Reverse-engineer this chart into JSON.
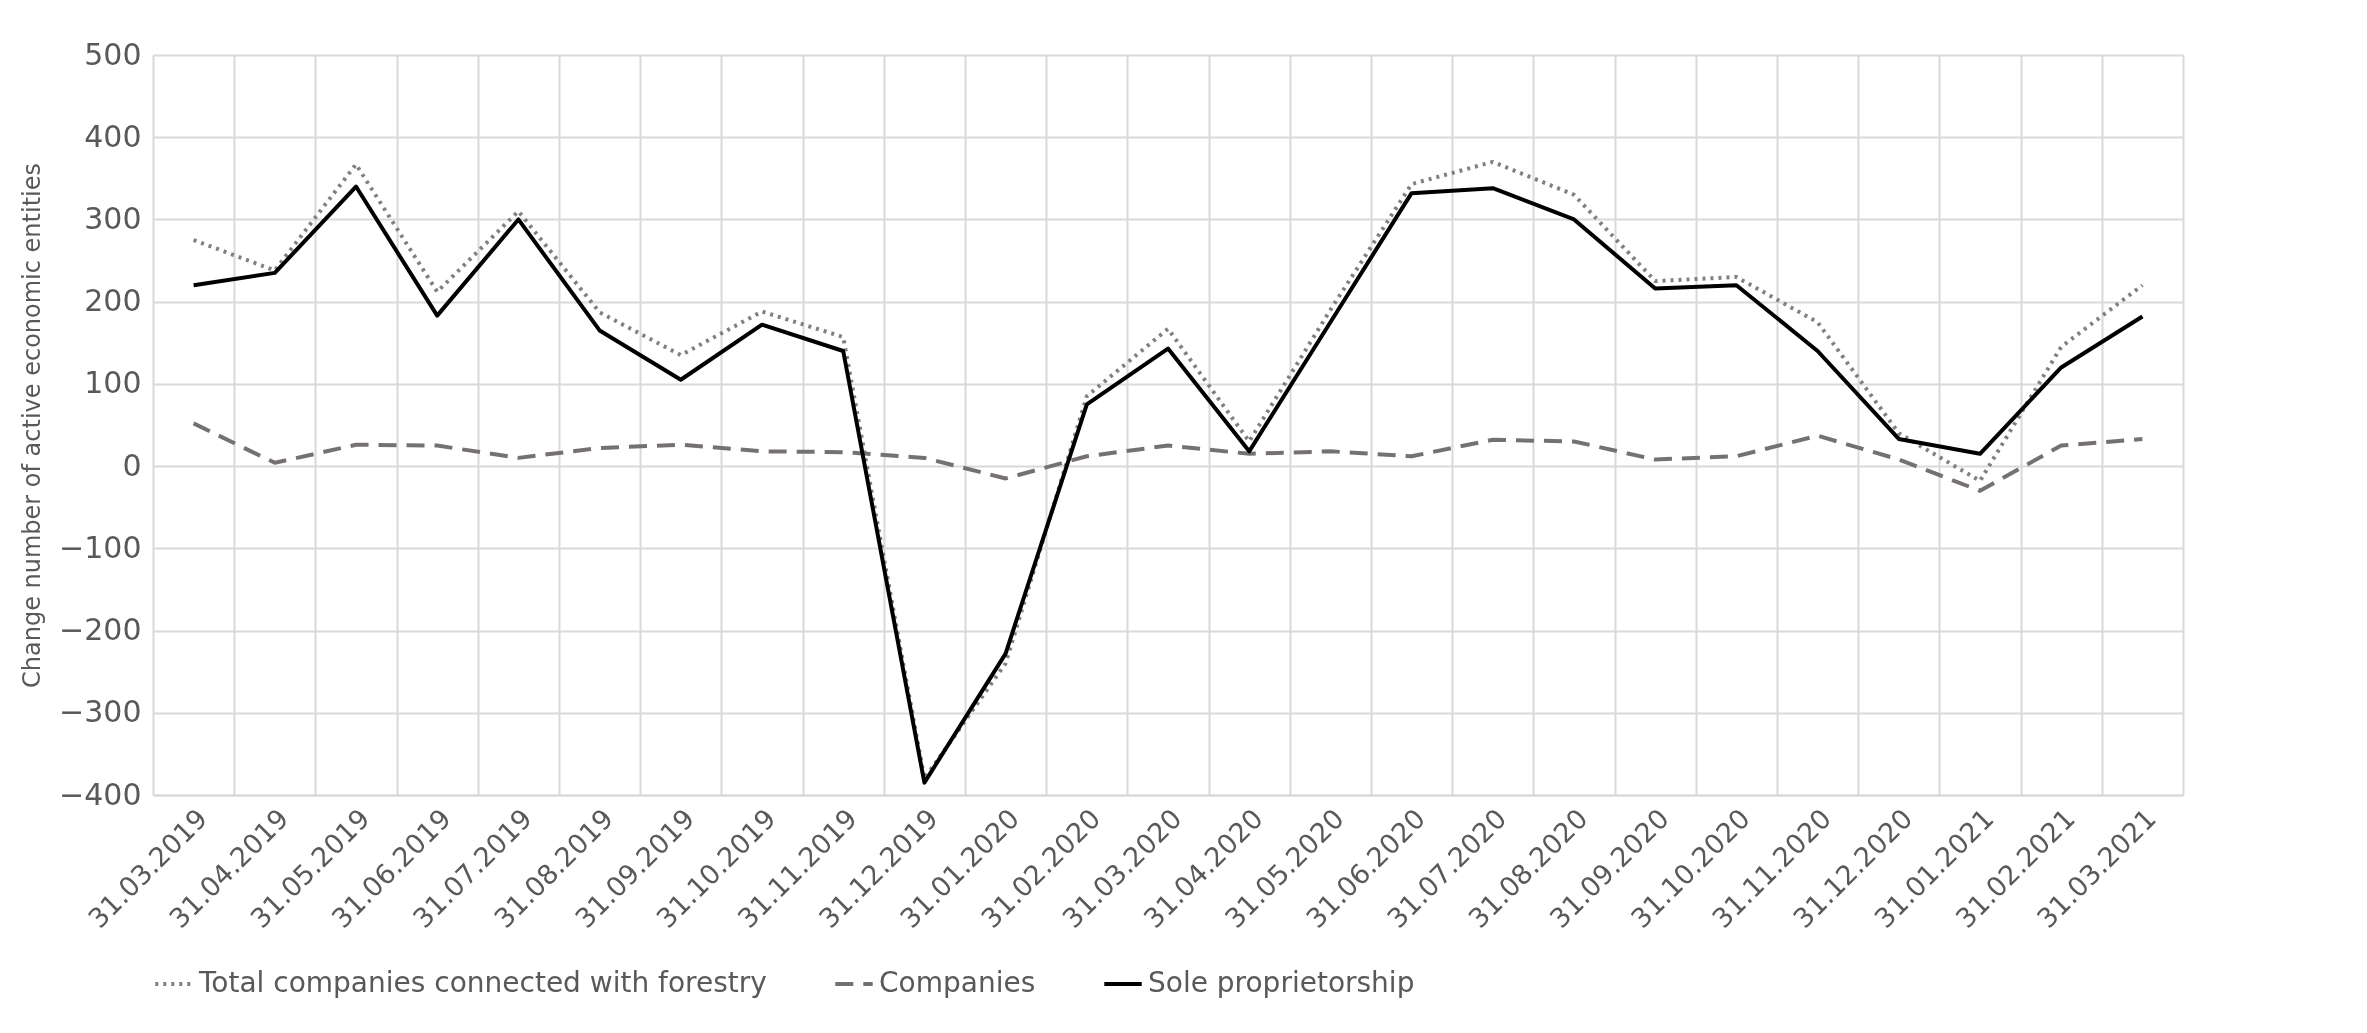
{
  "chart_data": {
    "type": "line",
    "ylabel": "Change number of active economic entities",
    "categories": [
      "31.03.2019",
      "31.04.2019",
      "31.05.2019",
      "31.06.2019",
      "31.07.2019",
      "31.08.2019",
      "31.09.2019",
      "31.10.2019",
      "31.11.2019",
      "31.12.2019",
      "31.01.2020",
      "31.02.2020",
      "31.03.2020",
      "31.04.2020",
      "31.05.2020",
      "31.06.2020",
      "31.07.2020",
      "31.08.2020",
      "31.09.2020",
      "31.10.2020",
      "31.11.2020",
      "31.12.2020",
      "31.01.2021",
      "31.02.2021",
      "31.03.2021"
    ],
    "series": [
      {
        "name": "Total companies connected with forestry",
        "color": "#808080",
        "line_style": "dotted",
        "values": [
          275,
          238,
          367,
          212,
          310,
          187,
          135,
          188,
          157,
          -380,
          -240,
          85,
          167,
          30,
          190,
          343,
          370,
          330,
          225,
          230,
          175,
          40,
          -18,
          145,
          220
        ]
      },
      {
        "name": "Companies",
        "color": "#767171",
        "line_style": "dashed",
        "values": [
          52,
          4,
          26,
          25,
          10,
          22,
          26,
          18,
          17,
          10,
          -15,
          12,
          25,
          15,
          18,
          12,
          32,
          30,
          8,
          12,
          37,
          8,
          -30,
          25,
          33
        ]
      },
      {
        "name": "Sole proprietorship",
        "color": "#000000",
        "line_style": "solid",
        "values": [
          220,
          235,
          340,
          183,
          300,
          165,
          105,
          172,
          140,
          -385,
          -228,
          75,
          143,
          18,
          175,
          332,
          338,
          300,
          216,
          220,
          140,
          33,
          15,
          120,
          182
        ]
      }
    ],
    "ylim": [
      -400,
      500
    ],
    "yticks": [
      -400,
      -300,
      -200,
      -100,
      0,
      100,
      200,
      300,
      400,
      500
    ],
    "grid": true,
    "legend": "bottom",
    "marker": "none"
  }
}
